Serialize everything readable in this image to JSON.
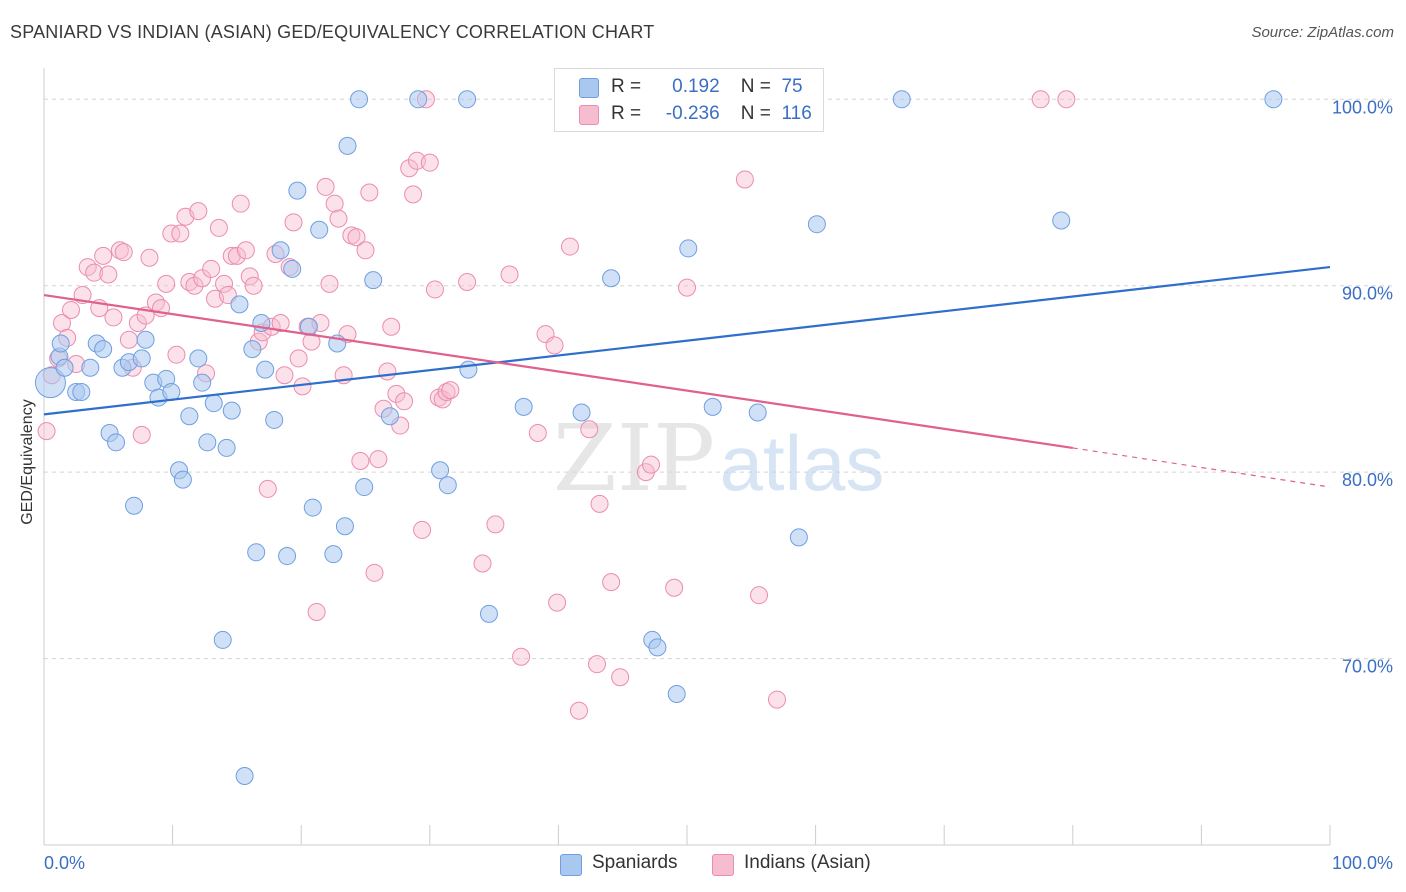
{
  "title": "SPANIARD VS INDIAN (ASIAN) GED/EQUIVALENCY CORRELATION CHART",
  "source": "Source: ZipAtlas.com",
  "legend": {
    "row1": {
      "r_label": "R =",
      "r_value": "0.192",
      "n_label": "N =",
      "n_value": "75"
    },
    "row2": {
      "r_label": "R =",
      "r_value": "-0.236",
      "n_label": "N =",
      "n_value": "116"
    }
  },
  "bottom_legend": {
    "s1": "Spaniards",
    "s2": "Indians (Asian)"
  },
  "colors": {
    "spaniards_fill": "#a9c8f0",
    "spaniards_stroke": "#6f9fe0",
    "spaniards_line": "#2e6fcc",
    "indians_fill": "#f6bcd0",
    "indians_stroke": "#ec8cae",
    "indians_line": "#e0608e",
    "tick_text": "#3a6fc4",
    "grid": "#d5d5d5"
  },
  "chart_data": {
    "type": "scatter",
    "title": "SPANIARD VS INDIAN (ASIAN) GED/EQUIVALENCY CORRELATION CHART",
    "xlabel": "",
    "ylabel": "GED/Equivalency",
    "xlim": [
      0,
      100
    ],
    "ylim": [
      60,
      102
    ],
    "x_tick_labels": [
      "0.0%",
      "100.0%"
    ],
    "y_ticks": [
      70,
      80,
      90,
      100
    ],
    "y_tick_labels": [
      "70.0%",
      "80.0%",
      "90.0%",
      "100.0%"
    ],
    "grid": true,
    "watermark": {
      "zip": "ZIP",
      "atlas": "atlas"
    },
    "series": [
      {
        "name": "Spaniards",
        "r": 0.192,
        "n": 75,
        "trend": {
          "x": [
            0,
            100
          ],
          "y": [
            83.1,
            91.0
          ]
        },
        "points": [
          [
            0.5,
            84.8
          ],
          [
            1.2,
            86.2
          ],
          [
            1.3,
            86.9
          ],
          [
            1.6,
            85.6
          ],
          [
            2.5,
            84.3
          ],
          [
            2.9,
            84.3
          ],
          [
            3.6,
            85.6
          ],
          [
            4.1,
            86.9
          ],
          [
            4.6,
            86.6
          ],
          [
            5.1,
            82.1
          ],
          [
            5.6,
            81.6
          ],
          [
            6.1,
            85.6
          ],
          [
            6.6,
            85.9
          ],
          [
            7.0,
            78.2
          ],
          [
            7.6,
            86.1
          ],
          [
            7.9,
            87.1
          ],
          [
            8.5,
            84.8
          ],
          [
            8.9,
            84.0
          ],
          [
            9.5,
            85.0
          ],
          [
            9.9,
            84.3
          ],
          [
            10.5,
            80.1
          ],
          [
            10.8,
            79.6
          ],
          [
            11.3,
            83.0
          ],
          [
            12.0,
            86.1
          ],
          [
            12.3,
            84.8
          ],
          [
            12.7,
            81.6
          ],
          [
            13.2,
            83.7
          ],
          [
            13.9,
            71.0
          ],
          [
            14.2,
            81.3
          ],
          [
            14.6,
            83.3
          ],
          [
            15.2,
            89.0
          ],
          [
            15.6,
            63.7
          ],
          [
            16.2,
            86.6
          ],
          [
            16.5,
            75.7
          ],
          [
            16.9,
            88.0
          ],
          [
            17.2,
            85.5
          ],
          [
            17.9,
            82.8
          ],
          [
            18.4,
            91.9
          ],
          [
            18.9,
            75.5
          ],
          [
            19.3,
            90.9
          ],
          [
            19.7,
            95.1
          ],
          [
            20.6,
            87.8
          ],
          [
            20.9,
            78.1
          ],
          [
            21.4,
            93.0
          ],
          [
            22.5,
            75.6
          ],
          [
            22.8,
            86.9
          ],
          [
            23.4,
            77.1
          ],
          [
            23.6,
            97.5
          ],
          [
            24.5,
            100.0
          ],
          [
            24.9,
            79.2
          ],
          [
            25.6,
            90.3
          ],
          [
            26.9,
            83.0
          ],
          [
            29.1,
            100.0
          ],
          [
            30.8,
            80.1
          ],
          [
            31.4,
            79.3
          ],
          [
            32.9,
            100.0
          ],
          [
            33.0,
            85.5
          ],
          [
            34.6,
            72.4
          ],
          [
            37.3,
            83.5
          ],
          [
            41.1,
            100.0
          ],
          [
            41.8,
            83.2
          ],
          [
            44.1,
            90.4
          ],
          [
            45.0,
            98.8
          ],
          [
            47.3,
            71.0
          ],
          [
            47.7,
            70.6
          ],
          [
            49.2,
            68.1
          ],
          [
            49.5,
            100.0
          ],
          [
            50.1,
            92.0
          ],
          [
            52.0,
            83.5
          ],
          [
            55.5,
            83.2
          ],
          [
            58.7,
            76.5
          ],
          [
            60.1,
            93.3
          ],
          [
            66.7,
            100.0
          ],
          [
            79.1,
            93.5
          ],
          [
            95.6,
            100.0
          ]
        ]
      },
      {
        "name": "Indians (Asian)",
        "r": -0.236,
        "n": 116,
        "trend": {
          "x": [
            0,
            80,
            100
          ],
          "y": [
            89.5,
            81.3,
            79.2
          ]
        },
        "points": [
          [
            0.2,
            82.2
          ],
          [
            0.6,
            85.2
          ],
          [
            1.1,
            86.1
          ],
          [
            1.4,
            88.0
          ],
          [
            1.8,
            87.2
          ],
          [
            2.1,
            88.7
          ],
          [
            2.5,
            85.8
          ],
          [
            3.0,
            89.5
          ],
          [
            3.4,
            91.0
          ],
          [
            3.9,
            90.7
          ],
          [
            4.3,
            88.8
          ],
          [
            4.6,
            91.6
          ],
          [
            5.0,
            90.6
          ],
          [
            5.4,
            88.3
          ],
          [
            5.9,
            91.9
          ],
          [
            6.2,
            91.8
          ],
          [
            6.6,
            87.1
          ],
          [
            6.9,
            85.6
          ],
          [
            7.3,
            88.0
          ],
          [
            7.6,
            82.0
          ],
          [
            7.9,
            88.4
          ],
          [
            8.2,
            91.5
          ],
          [
            8.7,
            89.1
          ],
          [
            9.1,
            88.8
          ],
          [
            9.5,
            90.1
          ],
          [
            9.9,
            92.8
          ],
          [
            10.3,
            86.3
          ],
          [
            10.6,
            92.8
          ],
          [
            11.0,
            93.7
          ],
          [
            11.3,
            90.2
          ],
          [
            11.7,
            90.0
          ],
          [
            12.0,
            94.0
          ],
          [
            12.3,
            90.4
          ],
          [
            12.6,
            85.3
          ],
          [
            13.0,
            90.9
          ],
          [
            13.3,
            89.3
          ],
          [
            13.6,
            93.1
          ],
          [
            14.0,
            90.1
          ],
          [
            14.3,
            89.5
          ],
          [
            14.6,
            91.6
          ],
          [
            15.0,
            91.6
          ],
          [
            15.3,
            94.4
          ],
          [
            15.7,
            91.9
          ],
          [
            16.0,
            90.5
          ],
          [
            16.3,
            90.0
          ],
          [
            16.7,
            87.0
          ],
          [
            17.0,
            87.5
          ],
          [
            17.4,
            79.1
          ],
          [
            17.7,
            87.8
          ],
          [
            18.0,
            91.7
          ],
          [
            18.4,
            88.0
          ],
          [
            18.7,
            85.2
          ],
          [
            19.1,
            91.0
          ],
          [
            19.4,
            93.4
          ],
          [
            19.8,
            86.1
          ],
          [
            20.1,
            84.6
          ],
          [
            20.5,
            87.8
          ],
          [
            20.8,
            87.0
          ],
          [
            21.2,
            72.5
          ],
          [
            21.5,
            88.0
          ],
          [
            21.9,
            95.3
          ],
          [
            22.2,
            90.1
          ],
          [
            22.6,
            94.4
          ],
          [
            22.9,
            93.6
          ],
          [
            23.3,
            85.2
          ],
          [
            23.6,
            87.4
          ],
          [
            23.9,
            92.7
          ],
          [
            24.3,
            92.6
          ],
          [
            24.6,
            80.6
          ],
          [
            25.0,
            91.9
          ],
          [
            25.3,
            95.0
          ],
          [
            25.7,
            74.6
          ],
          [
            26.0,
            80.7
          ],
          [
            26.4,
            83.4
          ],
          [
            26.7,
            85.4
          ],
          [
            27.0,
            87.8
          ],
          [
            27.4,
            84.2
          ],
          [
            27.7,
            82.5
          ],
          [
            28.0,
            83.8
          ],
          [
            28.4,
            96.3
          ],
          [
            28.7,
            94.9
          ],
          [
            29.0,
            96.7
          ],
          [
            29.4,
            76.9
          ],
          [
            29.7,
            100.0
          ],
          [
            30.0,
            96.6
          ],
          [
            30.4,
            89.8
          ],
          [
            30.7,
            84.0
          ],
          [
            31.0,
            83.9
          ],
          [
            31.3,
            84.3
          ],
          [
            31.6,
            84.4
          ],
          [
            32.9,
            90.2
          ],
          [
            34.1,
            75.1
          ],
          [
            35.1,
            77.2
          ],
          [
            36.2,
            90.6
          ],
          [
            37.1,
            70.1
          ],
          [
            38.4,
            82.1
          ],
          [
            39.0,
            87.4
          ],
          [
            39.7,
            86.8
          ],
          [
            39.9,
            73.0
          ],
          [
            40.9,
            92.1
          ],
          [
            41.6,
            67.2
          ],
          [
            42.4,
            82.3
          ],
          [
            43.0,
            69.7
          ],
          [
            43.2,
            78.3
          ],
          [
            44.1,
            74.1
          ],
          [
            44.8,
            69.0
          ],
          [
            46.8,
            80.0
          ],
          [
            47.2,
            80.4
          ],
          [
            49.0,
            73.8
          ],
          [
            50.0,
            89.9
          ],
          [
            54.5,
            95.7
          ],
          [
            55.6,
            73.4
          ],
          [
            57.0,
            67.8
          ],
          [
            77.5,
            100.0
          ],
          [
            79.5,
            100.0
          ],
          [
            46.2,
            100.0
          ]
        ]
      }
    ]
  }
}
